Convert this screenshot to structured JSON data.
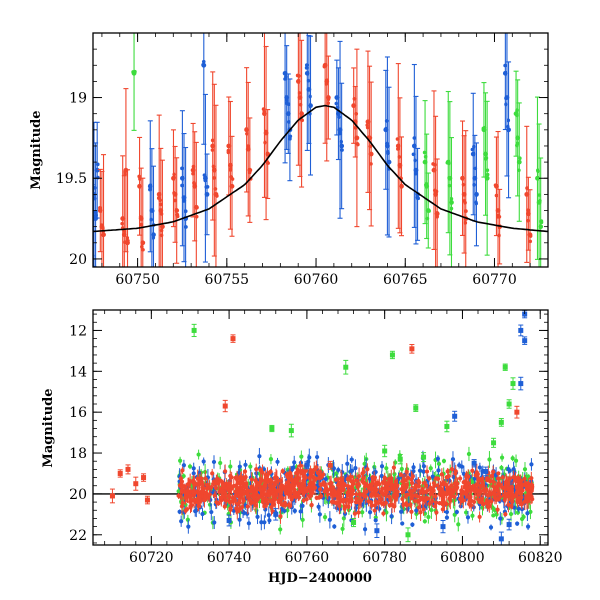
{
  "chart_data": [
    {
      "type": "scatter",
      "xlabel": "",
      "ylabel": "Magnitude",
      "xlim": [
        60747.5,
        60773
      ],
      "ylim": [
        20.05,
        18.6
      ],
      "y_inverted": true,
      "xticks": [
        60750,
        60755,
        60760,
        60765,
        60770
      ],
      "xtick_labels": [
        "60750",
        "60755",
        "60760",
        "60765",
        "60770"
      ],
      "yticks": [
        19,
        19.5,
        20
      ],
      "ytick_labels": [
        "19",
        "19.5",
        "20"
      ],
      "colors": {
        "red": "#f0472e",
        "blue": "#1f5fd6",
        "green": "#3ddc3d",
        "model": "#000000"
      },
      "model_curve": {
        "description": "Paczynski microlensing light curve",
        "x": [
          60747.5,
          60750,
          60752,
          60754,
          60756,
          60757,
          60758,
          60759,
          60760,
          60760.5,
          60761,
          60762,
          60763,
          60764,
          60765,
          60767,
          60769,
          60771,
          60773
        ],
        "y": [
          19.83,
          19.81,
          19.77,
          19.69,
          19.54,
          19.42,
          19.27,
          19.14,
          19.06,
          19.05,
          19.06,
          19.14,
          19.27,
          19.42,
          19.54,
          19.69,
          19.77,
          19.81,
          19.83
        ]
      },
      "observation_groups": [
        {
          "x": 60747.6,
          "color": "blue",
          "y": [
            19.98,
            19.6,
            19.75,
            19.45
          ]
        },
        {
          "x": 60748.0,
          "color": "red",
          "y": [
            19.7,
            19.8,
            19.85
          ]
        },
        {
          "x": 60749.3,
          "color": "red",
          "y": [
            19.75,
            19.85,
            19.45,
            19.9
          ]
        },
        {
          "x": 60749.8,
          "color": "green",
          "y": [
            18.85
          ]
        },
        {
          "x": 60750.2,
          "color": "red",
          "y": [
            19.55,
            19.75,
            19.9
          ]
        },
        {
          "x": 60750.8,
          "color": "blue",
          "y": [
            19.55,
            19.7,
            19.85
          ]
        },
        {
          "x": 60751.3,
          "color": "red",
          "y": [
            19.6,
            19.7,
            19.8
          ]
        },
        {
          "x": 60752.1,
          "color": "red",
          "y": [
            19.5,
            19.6,
            19.7
          ]
        },
        {
          "x": 60752.6,
          "color": "blue",
          "y": [
            19.5,
            19.62,
            19.75
          ]
        },
        {
          "x": 60753.2,
          "color": "red",
          "y": [
            19.45,
            19.55,
            19.68
          ]
        },
        {
          "x": 60753.8,
          "color": "blue",
          "y": [
            18.8,
            19.5,
            19.6
          ]
        },
        {
          "x": 60754.3,
          "color": "red",
          "y": [
            19.3,
            19.45,
            19.6
          ]
        },
        {
          "x": 60755.2,
          "color": "red",
          "y": [
            19.3,
            19.42,
            19.55
          ]
        },
        {
          "x": 60756.2,
          "color": "red",
          "y": [
            19.2,
            19.32,
            19.45
          ]
        },
        {
          "x": 60757.2,
          "color": "red",
          "y": [
            19.1,
            19.22,
            19.35
          ]
        },
        {
          "x": 60758.4,
          "color": "blue",
          "y": [
            18.85,
            19.0,
            19.1,
            19.2
          ]
        },
        {
          "x": 60759.1,
          "color": "red",
          "y": [
            18.9,
            19.0,
            19.1
          ]
        },
        {
          "x": 60759.6,
          "color": "blue",
          "y": [
            18.85,
            18.95,
            19.05
          ]
        },
        {
          "x": 60760.6,
          "color": "red",
          "y": [
            18.8,
            18.9,
            19.0
          ]
        },
        {
          "x": 60761.3,
          "color": "blue",
          "y": [
            19.0,
            19.1,
            19.2,
            19.3
          ]
        },
        {
          "x": 60762.2,
          "color": "red",
          "y": [
            19.05,
            19.15,
            19.25
          ]
        },
        {
          "x": 60763.0,
          "color": "red",
          "y": [
            19.15,
            19.25,
            19.35
          ]
        },
        {
          "x": 60764.0,
          "color": "blue",
          "y": [
            19.2,
            19.3,
            19.4
          ]
        },
        {
          "x": 60764.7,
          "color": "red",
          "y": [
            19.3,
            19.42,
            19.55
          ]
        },
        {
          "x": 60765.6,
          "color": "blue",
          "y": [
            19.3,
            19.45,
            19.6
          ]
        },
        {
          "x": 60766.2,
          "color": "green",
          "y": [
            19.4,
            19.55,
            19.7
          ]
        },
        {
          "x": 60766.7,
          "color": "red",
          "y": [
            19.45,
            19.6,
            19.72
          ]
        },
        {
          "x": 60767.5,
          "color": "green",
          "y": [
            19.4,
            19.5,
            19.65
          ]
        },
        {
          "x": 60768.3,
          "color": "red",
          "y": [
            19.5,
            19.6,
            19.75
          ]
        },
        {
          "x": 60768.9,
          "color": "blue",
          "y": [
            19.35,
            19.5,
            19.6
          ]
        },
        {
          "x": 60769.5,
          "color": "green",
          "y": [
            19.2,
            19.35,
            19.5
          ]
        },
        {
          "x": 60770.2,
          "color": "red",
          "y": [
            19.55,
            19.7,
            19.8
          ]
        },
        {
          "x": 60770.7,
          "color": "blue",
          "y": [
            18.85,
            19.0,
            19.2
          ]
        },
        {
          "x": 60771.3,
          "color": "green",
          "y": [
            19.1,
            19.25,
            19.4
          ]
        },
        {
          "x": 60771.9,
          "color": "red",
          "y": [
            19.6,
            19.72,
            19.85
          ]
        },
        {
          "x": 60772.5,
          "color": "green",
          "y": [
            19.5,
            19.65,
            19.8
          ]
        }
      ]
    },
    {
      "type": "scatter",
      "xlabel": "HJD−2400000",
      "ylabel": "Magnitude",
      "xlim": [
        60705,
        60822
      ],
      "ylim": [
        22.5,
        11
      ],
      "y_inverted": true,
      "xticks": [
        60720,
        60740,
        60760,
        60780,
        60800,
        60820
      ],
      "xtick_labels": [
        "60720",
        "60740",
        "60760",
        "60780",
        "60800",
        "60820"
      ],
      "yticks": [
        12,
        14,
        16,
        18,
        20,
        22
      ],
      "ytick_labels": [
        "12",
        "14",
        "16",
        "18",
        "20",
        "22"
      ],
      "baseline_magnitude": 20,
      "colors": {
        "red": "#f0472e",
        "blue": "#1f5fd6",
        "green": "#3ddc3d",
        "model": "#000000"
      },
      "band": {
        "x_start": 60727,
        "x_end": 60818,
        "center": 19.85,
        "spread": 0.9
      },
      "points": [
        {
          "x": 60710,
          "y": 20.1,
          "color": "red"
        },
        {
          "x": 60712,
          "y": 19.0,
          "color": "red"
        },
        {
          "x": 60714,
          "y": 18.8,
          "color": "red"
        },
        {
          "x": 60716,
          "y": 19.5,
          "color": "red"
        },
        {
          "x": 60718,
          "y": 19.2,
          "color": "red"
        },
        {
          "x": 60719,
          "y": 20.3,
          "color": "red"
        },
        {
          "x": 60731,
          "y": 12.0,
          "color": "green"
        },
        {
          "x": 60741,
          "y": 12.4,
          "color": "red"
        },
        {
          "x": 60739,
          "y": 15.7,
          "color": "red"
        },
        {
          "x": 60751,
          "y": 16.8,
          "color": "green"
        },
        {
          "x": 60756,
          "y": 16.9,
          "color": "green"
        },
        {
          "x": 60770,
          "y": 13.8,
          "color": "green"
        },
        {
          "x": 60782,
          "y": 13.2,
          "color": "green"
        },
        {
          "x": 60787,
          "y": 12.9,
          "color": "red"
        },
        {
          "x": 60788,
          "y": 15.8,
          "color": "green"
        },
        {
          "x": 60796,
          "y": 16.7,
          "color": "green"
        },
        {
          "x": 60798,
          "y": 16.2,
          "color": "blue"
        },
        {
          "x": 60808,
          "y": 17.5,
          "color": "green"
        },
        {
          "x": 60810,
          "y": 16.5,
          "color": "green"
        },
        {
          "x": 60811,
          "y": 13.8,
          "color": "green"
        },
        {
          "x": 60812,
          "y": 15.6,
          "color": "green"
        },
        {
          "x": 60813,
          "y": 14.6,
          "color": "green"
        },
        {
          "x": 60814,
          "y": 16.0,
          "color": "red"
        },
        {
          "x": 60815,
          "y": 12.0,
          "color": "blue"
        },
        {
          "x": 60816,
          "y": 11.2,
          "color": "blue"
        },
        {
          "x": 60816,
          "y": 12.5,
          "color": "blue"
        },
        {
          "x": 60815,
          "y": 14.6,
          "color": "blue"
        },
        {
          "x": 60760,
          "y": 18.6,
          "color": "blue"
        },
        {
          "x": 60766,
          "y": 18.6,
          "color": "red"
        },
        {
          "x": 60780,
          "y": 17.9,
          "color": "green"
        },
        {
          "x": 60784,
          "y": 18.3,
          "color": "green"
        },
        {
          "x": 60790,
          "y": 18.2,
          "color": "green"
        },
        {
          "x": 60803,
          "y": 18.5,
          "color": "blue"
        },
        {
          "x": 60806,
          "y": 18.9,
          "color": "blue"
        },
        {
          "x": 60740,
          "y": 21.3,
          "color": "blue"
        },
        {
          "x": 60752,
          "y": 21.0,
          "color": "blue"
        },
        {
          "x": 60772,
          "y": 21.4,
          "color": "green"
        },
        {
          "x": 60778,
          "y": 21.8,
          "color": "blue"
        },
        {
          "x": 60786,
          "y": 22.0,
          "color": "green"
        },
        {
          "x": 60795,
          "y": 21.6,
          "color": "blue"
        },
        {
          "x": 60810,
          "y": 22.2,
          "color": "blue"
        },
        {
          "x": 60812,
          "y": 21.5,
          "color": "blue"
        }
      ]
    }
  ]
}
